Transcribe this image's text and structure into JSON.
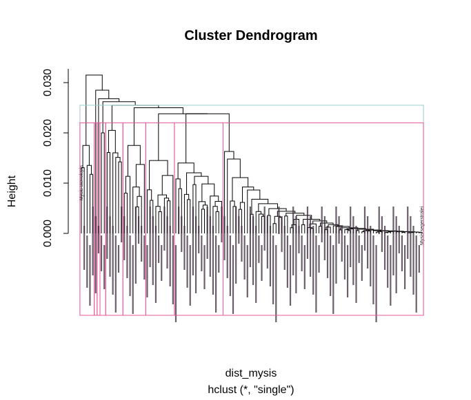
{
  "chart_data": {
    "type": "dendrogram",
    "title": "Cluster Dendrogram",
    "xlabel": "dist_mysis",
    "sub": "hclust (*, \"single\")",
    "ylabel": "Height",
    "ylim": [
      0,
      0.03
    ],
    "yticks": [
      "0.000",
      "0.010",
      "0.020",
      "0.030"
    ],
    "ytick_values": [
      0.0,
      0.01,
      0.02,
      0.03
    ],
    "leaf_count": 120,
    "leaf_labels": [
      "Mysis stenolepis",
      "Mysis segerstralei"
    ],
    "cut_heights": [
      0.0255,
      0.022
    ],
    "cut_colors": [
      "#99cccc",
      "#e8559a"
    ],
    "cluster_boundaries": [
      {
        "height": 0.0255,
        "color": "#99cccc",
        "leaf_ranges": [
          [
            1,
            120
          ]
        ]
      },
      {
        "height": 0.022,
        "color": "#e8559a",
        "leaf_ranges": [
          [
            1,
            5
          ],
          [
            6,
            6
          ],
          [
            7,
            7
          ],
          [
            8,
            9
          ],
          [
            10,
            15
          ],
          [
            16,
            23
          ],
          [
            24,
            33
          ],
          [
            34,
            50
          ],
          [
            51,
            120
          ]
        ]
      }
    ]
  }
}
